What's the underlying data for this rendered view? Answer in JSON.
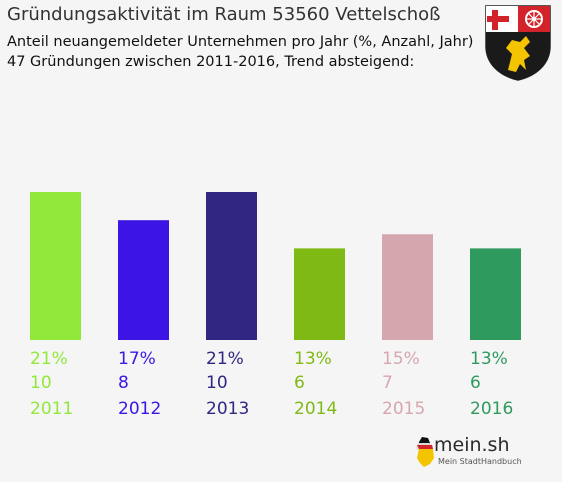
{
  "title": "Gründungsaktivität im Raum 53560 Vettelschoß",
  "subtitle1": "Anteil neuangemeldeter Unternehmen pro Jahr (%, Anzahl, Jahr)",
  "subtitle2": "47 Gründungen zwischen 2011-2016, Trend absteigend:",
  "logo": {
    "main": "mein.sh",
    "sub": "Mein StadtHandbuch"
  },
  "chart_data": {
    "type": "bar",
    "categories": [
      "2011",
      "2012",
      "2013",
      "2014",
      "2015",
      "2016"
    ],
    "values": [
      21,
      17,
      21,
      13,
      15,
      13
    ],
    "counts": [
      10,
      8,
      10,
      6,
      7,
      6
    ],
    "percent_labels": [
      "21%",
      "17%",
      "21%",
      "13%",
      "15%",
      "13%"
    ],
    "colors": [
      "#91e83a",
      "#3c15e4",
      "#2f2782",
      "#7fba14",
      "#d6a6af",
      "#2f9a5e"
    ],
    "ylim": [
      0,
      21
    ],
    "grid": false,
    "legend": "none"
  }
}
